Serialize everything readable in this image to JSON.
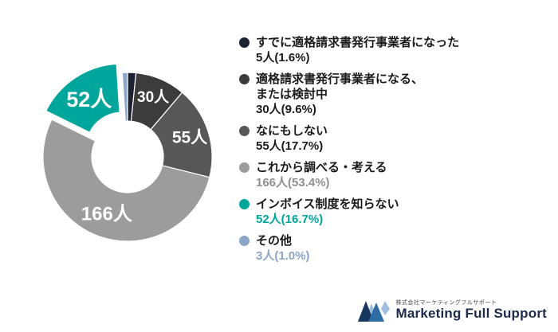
{
  "chart_data": {
    "type": "pie",
    "donut": true,
    "title": "",
    "direction": "clockwise",
    "start_angle_deg": 0,
    "legend_position": "right",
    "labels": [
      "すでに適格請求書発行事業者になった",
      "適格請求書発行事業者になる、または検討中",
      "なにもしない",
      "これから調べる・考える",
      "インボイス制度を知らない",
      "その他"
    ],
    "counts": [
      5,
      30,
      55,
      166,
      52,
      3
    ],
    "percents": [
      1.6,
      9.6,
      17.7,
      53.4,
      16.7,
      1.0
    ],
    "values_display": [
      "5人(1.6%)",
      "30人(9.6%)",
      "55人(17.7%)",
      "166人(53.4%)",
      "52人(16.7%)",
      "3人(1.0%)"
    ],
    "slice_labels": [
      "",
      "30人",
      "55人",
      "166人",
      "52人",
      ""
    ],
    "colors": [
      "#1d2233",
      "#3c3c3c",
      "#575757",
      "#9c9c9c",
      "#00a69b",
      "#8ba6c7"
    ],
    "exploded_index": 4
  },
  "legend": {
    "items": [
      {
        "label": "すでに適格請求書発行事業者になった",
        "value": "5人(1.6%)",
        "value_color": "#1a1a1a"
      },
      {
        "label": "適格請求書発行事業者になる、\nまたは検討中",
        "value": "30人(9.6%)",
        "value_color": "#1a1a1a"
      },
      {
        "label": "なにもしない",
        "value": "55人(17.7%)",
        "value_color": "#1a1a1a"
      },
      {
        "label": "これから調べる・考える",
        "value": "166人(53.4%)",
        "value_color": "#8f8f8f"
      },
      {
        "label": "インボイス制度を知らない",
        "value": "52人(16.7%)",
        "value_color": "#00a69b"
      },
      {
        "label": "その他",
        "value": "3人(1.0%)",
        "value_color": "#8ba6c7"
      }
    ]
  },
  "footer": {
    "company_jp": "株式会社マーケティングフルサポート",
    "company_en": "Marketing Full Support"
  }
}
